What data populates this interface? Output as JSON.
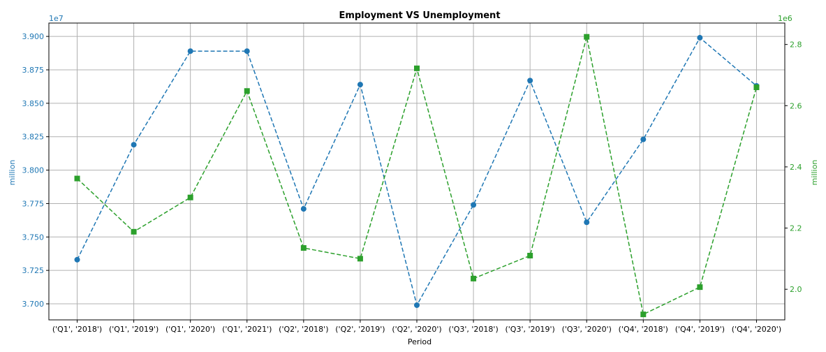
{
  "chart_data": {
    "type": "line",
    "title": "Employment VS Unemployment",
    "xlabel": "Period",
    "categories": [
      "('Q1', '2018')",
      "('Q1', '2019')",
      "('Q1', '2020')",
      "('Q1', '2021')",
      "('Q2', '2018')",
      "('Q2', '2019')",
      "('Q2', '2020')",
      "('Q3', '2018')",
      "('Q3', '2019')",
      "('Q3', '2020')",
      "('Q4', '2018')",
      "('Q4', '2019')",
      "('Q4', '2020')"
    ],
    "left_axis": {
      "label": "million",
      "scale_label": "1e7",
      "color": "#1f77b4",
      "ylim": [
        3.688,
        3.91
      ],
      "ticks": [
        3.7,
        3.725,
        3.75,
        3.775,
        3.8,
        3.825,
        3.85,
        3.875,
        3.9
      ],
      "tick_labels": [
        "3.700",
        "3.725",
        "3.750",
        "3.775",
        "3.800",
        "3.825",
        "3.850",
        "3.875",
        "3.900"
      ]
    },
    "right_axis": {
      "label": "million",
      "scale_label": "1e6",
      "color": "#2ca02c",
      "ylim": [
        1.9,
        2.87
      ],
      "ticks": [
        2.0,
        2.2,
        2.4,
        2.6,
        2.8
      ],
      "tick_labels": [
        "2.0",
        "2.2",
        "2.4",
        "2.6",
        "2.8"
      ]
    },
    "series": [
      {
        "axis": "left",
        "color": "#1f77b4",
        "marker": "circle",
        "linestyle": "dashed",
        "values": [
          3.733,
          3.819,
          3.889,
          3.889,
          3.771,
          3.864,
          3.699,
          3.774,
          3.867,
          3.761,
          3.823,
          3.899,
          3.863
        ]
      },
      {
        "axis": "right",
        "color": "#2ca02c",
        "marker": "square",
        "linestyle": "dashed",
        "values": [
          2.362,
          2.188,
          2.3,
          2.648,
          2.135,
          2.1,
          2.722,
          2.035,
          2.11,
          2.825,
          1.918,
          2.007,
          2.66
        ]
      }
    ],
    "grid": true
  }
}
